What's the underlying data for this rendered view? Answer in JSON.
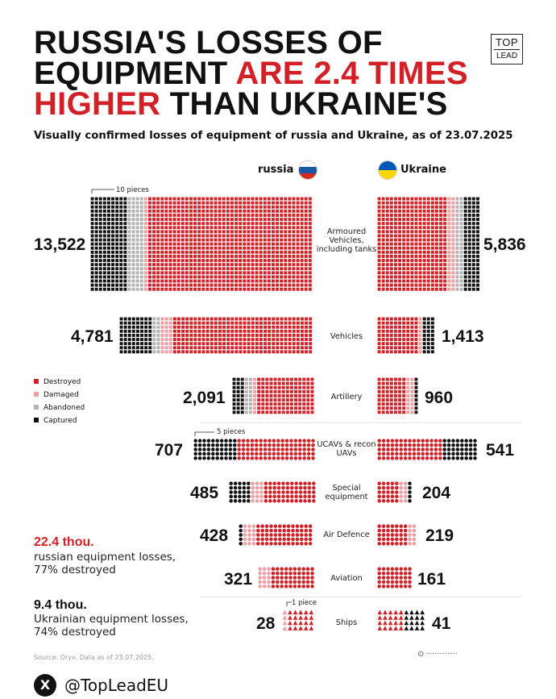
{
  "header": {
    "title_line1": "RUSSIA'S LOSSES OF",
    "title_line2a": "EQUIPMENT ",
    "title_line2b": "ARE 2.4 TIMES",
    "title_line3a": "HIGHER",
    "title_line3b": " THAN UKRAINE'S",
    "subtitle": "Visually confirmed losses of equipment of russia and Ukraine, as of 23.07.2025",
    "logo_line1": "TOP",
    "logo_line2": "LEAD"
  },
  "columns": {
    "left": "russia",
    "right": "Ukraine"
  },
  "notes": {
    "scale_10": "10 pieces",
    "scale_5": "5 pieces",
    "scale_1": "1 piece"
  },
  "legend": [
    "Destroyed",
    "Damaged",
    "Abandoned",
    "Captured"
  ],
  "summary": {
    "russia_value": "22.4 thou.",
    "russia_text1": "russian equipment losses,",
    "russia_text2": "77% destroyed",
    "ukraine_value": "9.4 thou.",
    "ukraine_text1": "Ukrainian equipment losses,",
    "ukraine_text2": "74% destroyed"
  },
  "source": "Source: Oryx. Data as of 23.07.2025.",
  "footer": {
    "x_icon": "X",
    "handle": "@TopLeadEU",
    "watermark": "⊙ ············"
  },
  "colors": {
    "destroyed": "#d32027",
    "damaged": "#f0a0a4",
    "abandoned": "#b3b3b3",
    "captured": "#111111",
    "accent": "#d32027"
  },
  "chart_data": {
    "type": "bar",
    "title": "Visually confirmed losses of equipment of russia and Ukraine, as of 23.07.2025",
    "categories": [
      "Armoured Vehicles, including tanks",
      "Vehicles",
      "Artillery",
      "UCAVs & recon UAVs",
      "Special equipment",
      "Air Defence",
      "Aviation",
      "Ships"
    ],
    "series": [
      {
        "name": "russia",
        "totals": [
          "13,522",
          "4,781",
          "2,091",
          "707",
          "485",
          "428",
          "321",
          "28"
        ]
      },
      {
        "name": "Ukraine",
        "totals": [
          "5,836",
          "1,413",
          "960",
          "541",
          "204",
          "219",
          "161",
          "41"
        ]
      }
    ],
    "legend": [
      "Destroyed",
      "Damaged",
      "Abandoned",
      "Captured"
    ],
    "legend_placement": "left"
  }
}
